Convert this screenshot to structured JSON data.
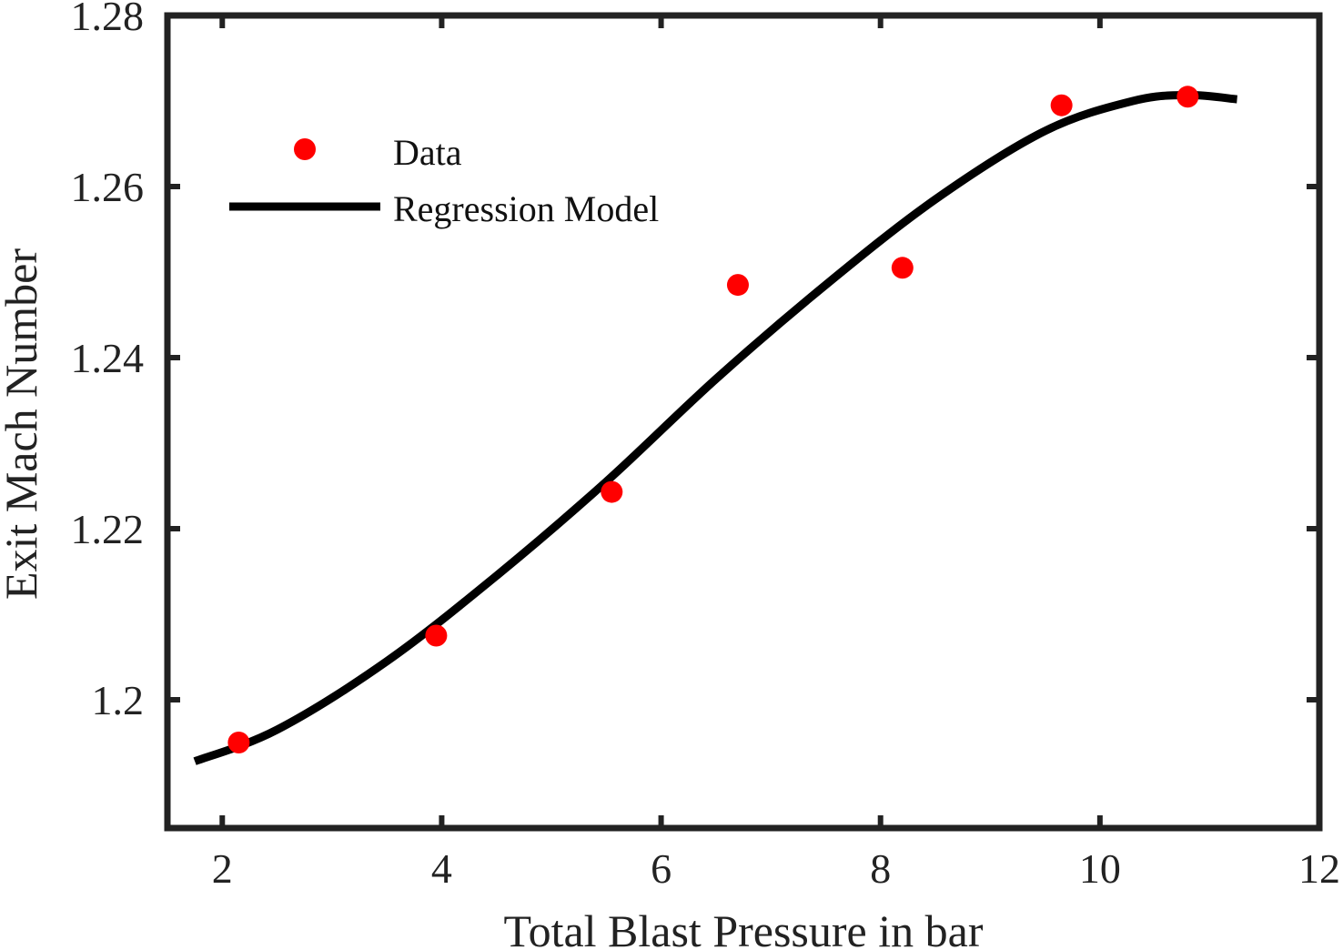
{
  "chart_data": {
    "type": "scatter",
    "title": "",
    "xlabel": "Total Blast Pressure in bar",
    "ylabel": "Exit Mach Number",
    "xlim": [
      1.5,
      12
    ],
    "ylim": [
      1.185,
      1.28
    ],
    "xticks": [
      2,
      4,
      6,
      8,
      10,
      12
    ],
    "yticks": [
      1.2,
      1.22,
      1.24,
      1.26,
      1.28
    ],
    "xtick_labels": [
      "2",
      "4",
      "6",
      "8",
      "10",
      "12"
    ],
    "ytick_labels": [
      "1.2",
      "1.22",
      "1.24",
      "1.26",
      "1.28"
    ],
    "grid": false,
    "legend_position": "top-left",
    "series": [
      {
        "name": "Data",
        "kind": "markers",
        "color": "#ff0000",
        "x": [
          2.15,
          3.95,
          5.55,
          6.7,
          8.2,
          9.65,
          10.8
        ],
        "y": [
          1.195,
          1.2075,
          1.2243,
          1.2485,
          1.2505,
          1.2695,
          1.2705
        ]
      },
      {
        "name": "Regression Model",
        "kind": "line",
        "color": "#000000",
        "x": [
          1.75,
          2.5,
          3.5,
          4.5,
          5.5,
          6.5,
          7.5,
          8.5,
          9.5,
          10.3,
          10.8,
          11.25
        ],
        "y": [
          1.1928,
          1.1965,
          1.2045,
          1.2145,
          1.2255,
          1.2375,
          1.2485,
          1.2585,
          1.2665,
          1.27,
          1.2707,
          1.2702
        ]
      }
    ]
  }
}
